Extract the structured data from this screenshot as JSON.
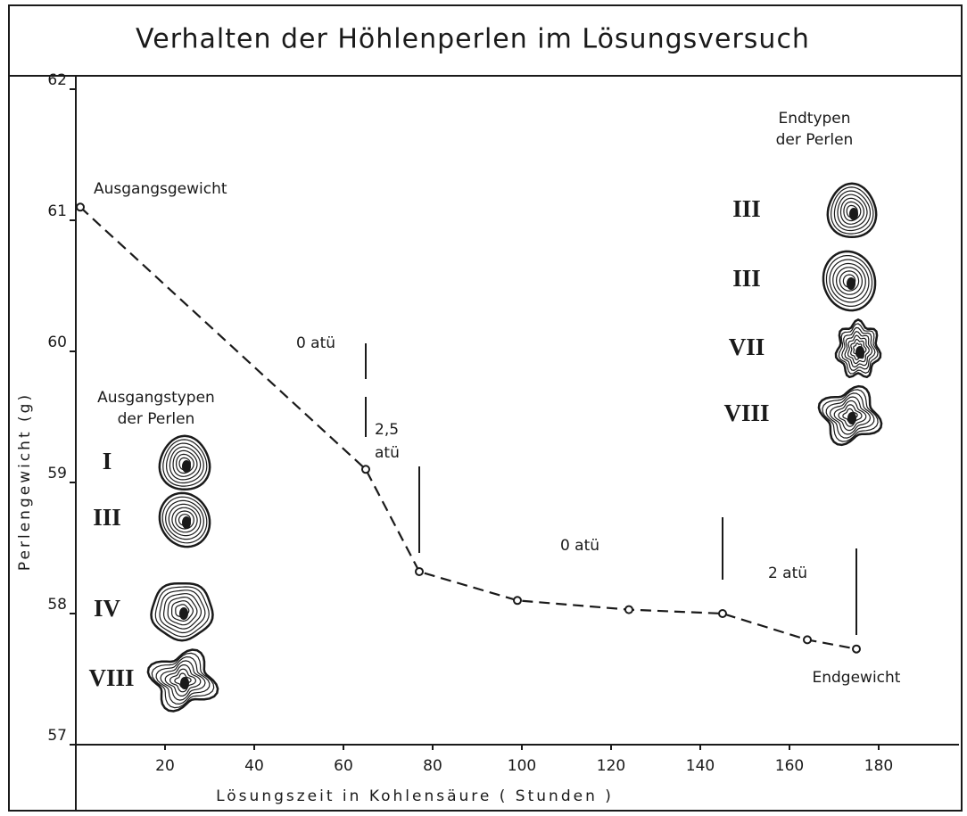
{
  "chart_data": {
    "type": "line",
    "title": "Verhalten der Höhlenperlen im Lösungsversuch",
    "x_label": "Lösungszeit in Kohlensäure ( Stunden )",
    "y_label": "Perlengewicht (g)",
    "x": [
      1,
      65,
      77,
      99,
      124,
      145,
      164,
      175
    ],
    "values": [
      61.1,
      59.1,
      58.32,
      58.1,
      58.03,
      58.0,
      57.8,
      57.73
    ],
    "color": "#1a1a1a",
    "line_style": "dashed",
    "xlim": [
      0,
      198
    ],
    "ylim": [
      57,
      62
    ],
    "xticks": [
      20,
      40,
      60,
      80,
      100,
      120,
      140,
      160,
      180
    ],
    "yticks": [
      57,
      58,
      59,
      60,
      61,
      62
    ],
    "annotations": [
      "Ausgangsgewicht",
      "0 atü",
      "2,5",
      "atü",
      "0 atü",
      "2 atü",
      "Endgewicht"
    ],
    "start_types": {
      "title": [
        "Ausgangstypen",
        "der Perlen"
      ],
      "types": [
        "I",
        "III",
        "IV",
        "VIII"
      ]
    },
    "end_types": {
      "title": [
        "Endtypen",
        "der Perlen"
      ],
      "types": [
        "III",
        "III",
        "VII",
        "VIII"
      ]
    }
  }
}
